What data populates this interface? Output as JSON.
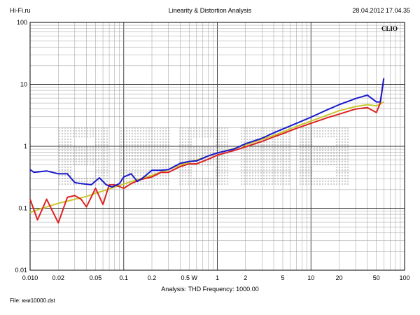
{
  "header": {
    "site": "Hi-Fi.ru",
    "title": "Linearity & Distortion Analysis",
    "datetime": "28.04.2012 17.04.35"
  },
  "brand_label": "CLIO",
  "analysis_caption": "Analysis: THD   Frequency: 1000.00",
  "file_label": "File: кни10000.dst",
  "chart_data": {
    "type": "line",
    "title": "Linearity & Distortion Analysis",
    "x_scale": "log",
    "y_scale": "log",
    "xlim": [
      0.01,
      100
    ],
    "ylim": [
      0.01,
      100
    ],
    "grid": true,
    "legend": "none",
    "x_ticks": [
      {
        "v": 0.01,
        "label": "0.010"
      },
      {
        "v": 0.02,
        "label": "0.02"
      },
      {
        "v": 0.05,
        "label": "0.05"
      },
      {
        "v": 0.1,
        "label": "0.1"
      },
      {
        "v": 0.2,
        "label": "0.2"
      },
      {
        "v": 0.5,
        "label": "0.5 W"
      },
      {
        "v": 1,
        "label": "1"
      },
      {
        "v": 2,
        "label": "2"
      },
      {
        "v": 5,
        "label": "5"
      },
      {
        "v": 10,
        "label": "10"
      },
      {
        "v": 20,
        "label": "20"
      },
      {
        "v": 50,
        "label": "50"
      },
      {
        "v": 100,
        "label": "100"
      }
    ],
    "y_ticks": [
      {
        "v": 100,
        "label": "100"
      },
      {
        "v": 10,
        "label": "10"
      },
      {
        "v": 1,
        "label": "1"
      },
      {
        "v": 0.1,
        "label": "0.1"
      },
      {
        "v": 0.01,
        "label": "0.01"
      }
    ],
    "series": [
      {
        "color": "#c8c832",
        "points": [
          [
            0.01,
            0.085
          ],
          [
            0.012,
            0.095
          ],
          [
            0.015,
            0.105
          ],
          [
            0.02,
            0.12
          ],
          [
            0.025,
            0.13
          ],
          [
            0.03,
            0.14
          ],
          [
            0.04,
            0.155
          ],
          [
            0.05,
            0.175
          ],
          [
            0.06,
            0.19
          ],
          [
            0.07,
            0.205
          ],
          [
            0.08,
            0.22
          ],
          [
            0.1,
            0.245
          ],
          [
            0.12,
            0.27
          ],
          [
            0.15,
            0.3
          ],
          [
            0.2,
            0.34
          ],
          [
            0.3,
            0.42
          ],
          [
            0.4,
            0.5
          ],
          [
            0.5,
            0.55
          ],
          [
            0.7,
            0.65
          ],
          [
            1,
            0.78
          ],
          [
            1.5,
            0.92
          ],
          [
            2,
            1.05
          ],
          [
            3,
            1.3
          ],
          [
            4,
            1.5
          ],
          [
            5,
            1.7
          ],
          [
            7,
            2.1
          ],
          [
            10,
            2.55
          ],
          [
            15,
            3.2
          ],
          [
            20,
            3.75
          ],
          [
            30,
            4.4
          ],
          [
            40,
            4.7
          ],
          [
            50,
            4.5
          ],
          [
            55,
            4.8
          ],
          [
            60,
            5.2
          ]
        ]
      },
      {
        "color": "#dd2222",
        "points": [
          [
            0.01,
            0.14
          ],
          [
            0.012,
            0.065
          ],
          [
            0.015,
            0.14
          ],
          [
            0.02,
            0.058
          ],
          [
            0.025,
            0.15
          ],
          [
            0.03,
            0.16
          ],
          [
            0.035,
            0.14
          ],
          [
            0.04,
            0.105
          ],
          [
            0.05,
            0.21
          ],
          [
            0.06,
            0.115
          ],
          [
            0.07,
            0.24
          ],
          [
            0.08,
            0.24
          ],
          [
            0.1,
            0.21
          ],
          [
            0.12,
            0.25
          ],
          [
            0.15,
            0.29
          ],
          [
            0.2,
            0.32
          ],
          [
            0.25,
            0.38
          ],
          [
            0.3,
            0.38
          ],
          [
            0.4,
            0.47
          ],
          [
            0.5,
            0.52
          ],
          [
            0.6,
            0.52
          ],
          [
            0.8,
            0.62
          ],
          [
            1,
            0.72
          ],
          [
            1.5,
            0.85
          ],
          [
            2,
            0.98
          ],
          [
            3,
            1.2
          ],
          [
            4,
            1.42
          ],
          [
            5,
            1.6
          ],
          [
            7,
            1.95
          ],
          [
            10,
            2.35
          ],
          [
            15,
            2.9
          ],
          [
            20,
            3.3
          ],
          [
            30,
            4.0
          ],
          [
            40,
            4.2
          ],
          [
            50,
            3.5
          ],
          [
            55,
            5.0
          ],
          [
            60,
            12.5
          ]
        ]
      },
      {
        "color": "#1a1acc",
        "points": [
          [
            0.01,
            0.42
          ],
          [
            0.011,
            0.38
          ],
          [
            0.015,
            0.4
          ],
          [
            0.02,
            0.36
          ],
          [
            0.025,
            0.36
          ],
          [
            0.03,
            0.26
          ],
          [
            0.035,
            0.25
          ],
          [
            0.045,
            0.24
          ],
          [
            0.055,
            0.31
          ],
          [
            0.065,
            0.24
          ],
          [
            0.075,
            0.22
          ],
          [
            0.09,
            0.25
          ],
          [
            0.1,
            0.32
          ],
          [
            0.12,
            0.36
          ],
          [
            0.14,
            0.27
          ],
          [
            0.16,
            0.31
          ],
          [
            0.2,
            0.41
          ],
          [
            0.25,
            0.41
          ],
          [
            0.3,
            0.42
          ],
          [
            0.4,
            0.53
          ],
          [
            0.5,
            0.57
          ],
          [
            0.6,
            0.58
          ],
          [
            0.8,
            0.7
          ],
          [
            1,
            0.78
          ],
          [
            1.5,
            0.9
          ],
          [
            2,
            1.1
          ],
          [
            3,
            1.35
          ],
          [
            4,
            1.65
          ],
          [
            5,
            1.9
          ],
          [
            7,
            2.35
          ],
          [
            10,
            2.95
          ],
          [
            15,
            3.9
          ],
          [
            20,
            4.7
          ],
          [
            30,
            5.9
          ],
          [
            40,
            6.7
          ],
          [
            50,
            5.2
          ],
          [
            55,
            5.2
          ],
          [
            60,
            12.5
          ]
        ]
      }
    ]
  }
}
